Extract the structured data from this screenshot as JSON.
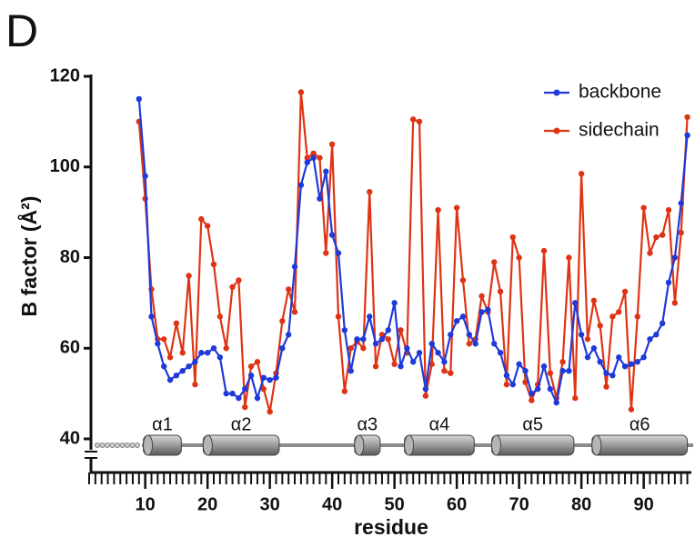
{
  "chart_data": {
    "type": "line",
    "panel_label": "D",
    "x_label": "residue",
    "y_label": "B factor (Å²)",
    "x": [
      9,
      10,
      11,
      12,
      13,
      14,
      15,
      16,
      17,
      18,
      19,
      20,
      21,
      22,
      23,
      24,
      25,
      26,
      27,
      28,
      29,
      30,
      31,
      32,
      33,
      34,
      35,
      36,
      37,
      38,
      39,
      40,
      41,
      42,
      43,
      44,
      45,
      46,
      47,
      48,
      49,
      50,
      51,
      52,
      53,
      54,
      55,
      56,
      57,
      58,
      59,
      60,
      61,
      62,
      63,
      64,
      65,
      66,
      67,
      68,
      69,
      70,
      71,
      72,
      73,
      74,
      75,
      76,
      77,
      78,
      79,
      80,
      81,
      82,
      83,
      84,
      85,
      86,
      87,
      88,
      89,
      90,
      91,
      92,
      93,
      94,
      95,
      96,
      97
    ],
    "series": [
      {
        "name": "backbone",
        "color": "#1f3ad8",
        "values": [
          115,
          98,
          67,
          61,
          56,
          53,
          54,
          55,
          56,
          57,
          59,
          59,
          60,
          58,
          50,
          50,
          49,
          51,
          54,
          49,
          53.5,
          53,
          53.5,
          60,
          63,
          78,
          96,
          101,
          102,
          93,
          99,
          85,
          81,
          64,
          55,
          62,
          62,
          67,
          61,
          62,
          64,
          70,
          56,
          60,
          57,
          59,
          51,
          61,
          59,
          57,
          63,
          66,
          67,
          63,
          61,
          68,
          68.5,
          61,
          59,
          54,
          52,
          56.5,
          55,
          50,
          51,
          56,
          51,
          48,
          55,
          55,
          70,
          63,
          58,
          60,
          57,
          54.5,
          54,
          58,
          56,
          56.5,
          57,
          58,
          62,
          63,
          65.5,
          74.5,
          80,
          92,
          107
        ]
      },
      {
        "name": "sidechain",
        "color": "#de3414",
        "values": [
          110,
          93,
          73,
          62,
          62,
          58,
          65.5,
          59,
          76,
          52,
          88.5,
          87,
          78.5,
          67,
          60,
          73.5,
          75,
          47,
          56,
          57,
          51,
          46,
          54.5,
          66,
          73,
          68,
          116.5,
          102,
          103,
          102,
          81,
          105,
          67,
          50.5,
          60,
          61.5,
          60,
          94.5,
          56,
          63,
          62,
          56.5,
          64,
          59,
          110.5,
          110,
          49.5,
          56.5,
          90.5,
          55,
          54.5,
          91,
          75,
          61,
          62,
          71.5,
          68,
          79,
          72.5,
          52,
          84.5,
          80,
          52.5,
          48.5,
          52,
          81.5,
          54.5,
          49,
          57,
          80,
          49,
          98.5,
          62,
          70.5,
          65,
          51.5,
          67,
          68,
          72.5,
          46.5,
          67,
          91,
          81,
          84.5,
          85,
          90.5,
          70,
          85.5,
          111
        ]
      }
    ],
    "xlim": [
      1,
      97.5
    ],
    "xticks": [
      10,
      20,
      30,
      40,
      50,
      60,
      70,
      80,
      90
    ],
    "xminorticks": [
      1,
      2,
      3,
      4,
      5,
      6,
      7,
      8,
      9,
      10,
      11,
      12,
      13,
      14,
      15,
      16,
      17,
      18,
      19,
      20,
      21,
      22,
      23,
      24,
      25,
      26,
      27,
      28,
      29,
      30,
      31,
      32,
      33,
      34,
      35,
      36,
      37,
      38,
      39,
      40,
      41,
      42,
      43,
      44,
      45,
      46,
      47,
      48,
      49,
      50,
      51,
      52,
      53,
      54,
      55,
      56,
      57,
      58,
      59,
      60,
      61,
      62,
      63,
      64,
      65,
      66,
      67,
      68,
      69,
      70,
      71,
      72,
      73,
      74,
      75,
      76,
      77,
      78,
      79,
      80,
      81,
      82,
      83,
      84,
      85,
      86,
      87,
      88,
      89,
      90,
      91,
      92,
      93,
      94,
      95,
      96,
      97
    ],
    "ylim": [
      40,
      120
    ],
    "yticks": [
      40,
      60,
      80,
      100,
      120
    ],
    "legend": "upper right",
    "helices": [
      {
        "label": "α1",
        "start": 9.7,
        "end": 15.8
      },
      {
        "label": "α2",
        "start": 19.3,
        "end": 31.5
      },
      {
        "label": "α3",
        "start": 43.6,
        "end": 47.7
      },
      {
        "label": "α4",
        "start": 51.6,
        "end": 62.8
      },
      {
        "label": "α5",
        "start": 65.6,
        "end": 78.8
      },
      {
        "label": "α6",
        "start": 81.7,
        "end": 97
      }
    ]
  }
}
